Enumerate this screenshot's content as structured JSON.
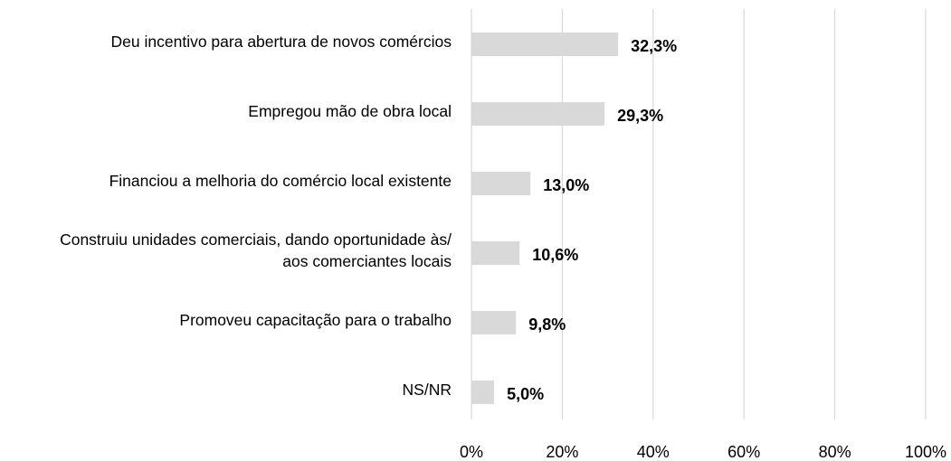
{
  "chart_data": {
    "type": "barh",
    "categories": [
      "Deu incentivo para abertura de novos comércios",
      "Empregou mão de obra local",
      "Financiou a melhoria do comércio local existente",
      "Construiu unidades comerciais, dando oportunidade às/\naos comerciantes locais",
      "Promoveu capacitação para o trabalho",
      "NS/NR"
    ],
    "values": [
      32.3,
      29.3,
      13.0,
      10.6,
      9.8,
      5.0
    ],
    "value_labels": [
      "32,3%",
      "29,3%",
      "13,0%",
      "10,6%",
      "9,8%",
      "5,0%"
    ],
    "color": "#d9d9d9",
    "xlim": [
      0,
      100
    ],
    "xticks": [
      {
        "value": 0,
        "label": "0%"
      },
      {
        "value": 20,
        "label": "20%"
      },
      {
        "value": 40,
        "label": "40%"
      },
      {
        "value": 60,
        "label": "60%"
      },
      {
        "value": 80,
        "label": "80%"
      },
      {
        "value": 100,
        "label": "100%"
      }
    ],
    "grid": true
  }
}
